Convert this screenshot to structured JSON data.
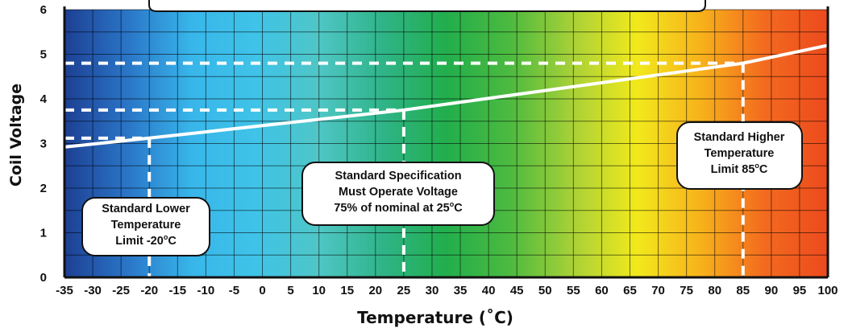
{
  "chart_data": {
    "type": "line",
    "title": "",
    "xlabel": "Temperature (˚C)",
    "ylabel": "Coil Voltage",
    "xlim": [
      -35,
      100
    ],
    "ylim": [
      0,
      6
    ],
    "x_ticks": [
      "-35",
      "-30",
      "-25",
      "-20",
      "-15",
      "-10",
      "-5",
      "0",
      "5",
      "10",
      "15",
      "20",
      "25",
      "30",
      "35",
      "40",
      "45",
      "50",
      "55",
      "60",
      "65",
      "70",
      "75",
      "80",
      "85",
      "90",
      "95",
      "100"
    ],
    "y_ticks": [
      "0",
      "1",
      "2",
      "3",
      "4",
      "5",
      "6"
    ],
    "grid": true,
    "background": "temperature color gradient (blue to red)",
    "series": [
      {
        "x": [
          -35,
          -20,
          25,
          85,
          100
        ],
        "y": [
          2.92,
          3.12,
          3.75,
          4.8,
          5.2
        ],
        "color": "#ffffff"
      }
    ],
    "reference_lines": [
      {
        "x": -20,
        "y": 3.12
      },
      {
        "x": 25,
        "y": 3.75
      },
      {
        "x": 85,
        "y": 4.8
      }
    ],
    "annotations": [
      {
        "lines": [
          "Standard Lower",
          "Temperature",
          "Limit -20",
          "o",
          "C"
        ]
      },
      {
        "lines": [
          "Standard Specification",
          "Must Operate Voltage",
          "75% of nominal at 25",
          "o",
          "C"
        ]
      },
      {
        "lines": [
          "Standard Higher",
          "Temperature",
          "Limit 85",
          "o",
          "C"
        ]
      }
    ],
    "gradient_colors": [
      "#1d3f93",
      "#2a76c8",
      "#38b6ea",
      "#3fc3e8",
      "#4fc6c6",
      "#2fb488",
      "#22ae4c",
      "#4cba3f",
      "#a9d137",
      "#f2e91c",
      "#f7b21b",
      "#f36a1f",
      "#ec4a1e"
    ]
  }
}
